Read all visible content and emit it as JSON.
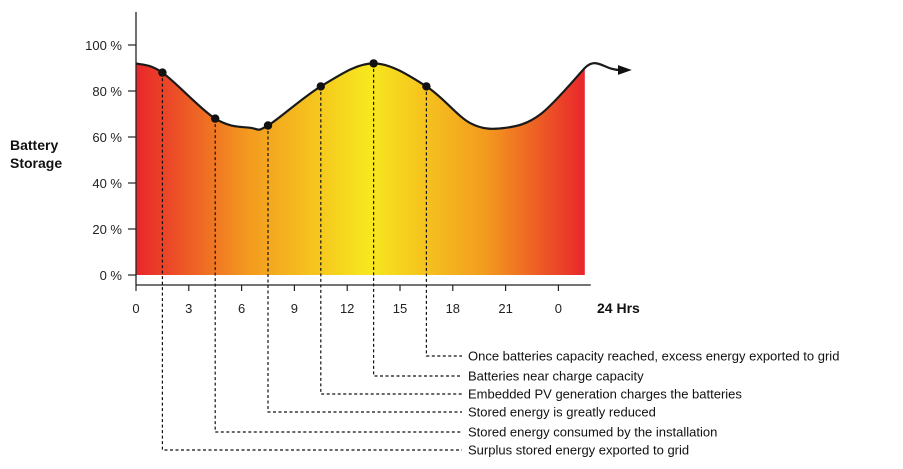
{
  "chart_data": {
    "type": "area",
    "ylabel": [
      "Battery",
      "Storage"
    ],
    "x_unit_label": "24 Hrs",
    "x_ticks": [
      "0",
      "3",
      "6",
      "9",
      "12",
      "15",
      "18",
      "21",
      "0"
    ],
    "x_tick_values": [
      0,
      3,
      6,
      9,
      12,
      15,
      18,
      21,
      24
    ],
    "y_ticks": [
      "0 %",
      "20 %",
      "40 %",
      "60 %",
      "80 %",
      "100 %"
    ],
    "y_tick_values": [
      0,
      20,
      40,
      60,
      80,
      100
    ],
    "xlim": [
      0,
      25.5
    ],
    "ylim": [
      0,
      100
    ],
    "curve": {
      "x": [
        0,
        1.5,
        4.5,
        6.5,
        7.5,
        10.5,
        13.5,
        16.5,
        19,
        21,
        23,
        25.5
      ],
      "y": [
        92,
        88,
        68,
        64,
        65,
        82,
        92,
        82,
        66,
        64,
        70,
        90
      ]
    },
    "points": [
      {
        "x": 1.5,
        "y": 88,
        "label": "Surplus stored energy exported to grid"
      },
      {
        "x": 4.5,
        "y": 68,
        "label": "Stored energy consumed by the installation"
      },
      {
        "x": 7.5,
        "y": 65,
        "label": "Stored energy is greatly reduced"
      },
      {
        "x": 10.5,
        "y": 82,
        "label": "Embedded PV generation charges the batteries"
      },
      {
        "x": 13.5,
        "y": 92,
        "label": "Batteries near charge capacity"
      },
      {
        "x": 16.5,
        "y": 82,
        "label": "Once batteries capacity reached, excess energy exported to grid"
      }
    ],
    "colors": {
      "edge_red": "#e8262b",
      "mid_orange": "#f39a1f",
      "center_yellow": "#f7e81e",
      "line": "#1a1a1a"
    }
  }
}
